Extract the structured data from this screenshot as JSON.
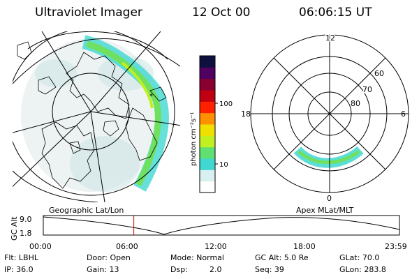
{
  "header": {
    "instrument": "Ultraviolet Imager",
    "date": "12 Oct 00",
    "time": "06:06:15 UT"
  },
  "colorbar": {
    "label": "photon cm⁻²s⁻¹",
    "ticks": [
      "100",
      "10"
    ],
    "scale_min": 2,
    "scale_max": 500,
    "colors": [
      "#ffffff",
      "#d8f0f0",
      "#40d8d0",
      "#60e070",
      "#c0f020",
      "#f0e000",
      "#ff9000",
      "#ff2000",
      "#c00010",
      "#880030",
      "#500060",
      "#101040"
    ]
  },
  "geo_panel": {
    "caption": "Geographic Lat/Lon"
  },
  "polar_panel": {
    "caption": "Apex MLat/MLT",
    "mlt_labels": [
      "12",
      "18",
      "6",
      "0"
    ],
    "mlat_labels": [
      "60",
      "70",
      "80"
    ]
  },
  "timeline": {
    "axis_title": "GC Alt",
    "y_ticks": [
      "9.0",
      "1.8"
    ],
    "x_ticks": [
      "00:00",
      "06:00",
      "12:00",
      "18:00",
      "23:59"
    ],
    "current_time_hours": 6.1,
    "cursor_color": "#cc0000"
  },
  "info": {
    "filter": "Flt: LBHL",
    "ip": "IP: 36.0",
    "door": "Door: Open",
    "gain": "Gain: 13",
    "mode": "Mode: Normal",
    "dsp_label": "Dsp:",
    "dsp_value": "2.0",
    "gc_alt": "GC Alt: 5.0 Re",
    "seq": "Seq: 39",
    "glat": "GLat: 70.0",
    "glon": "GLon: 283.8"
  }
}
